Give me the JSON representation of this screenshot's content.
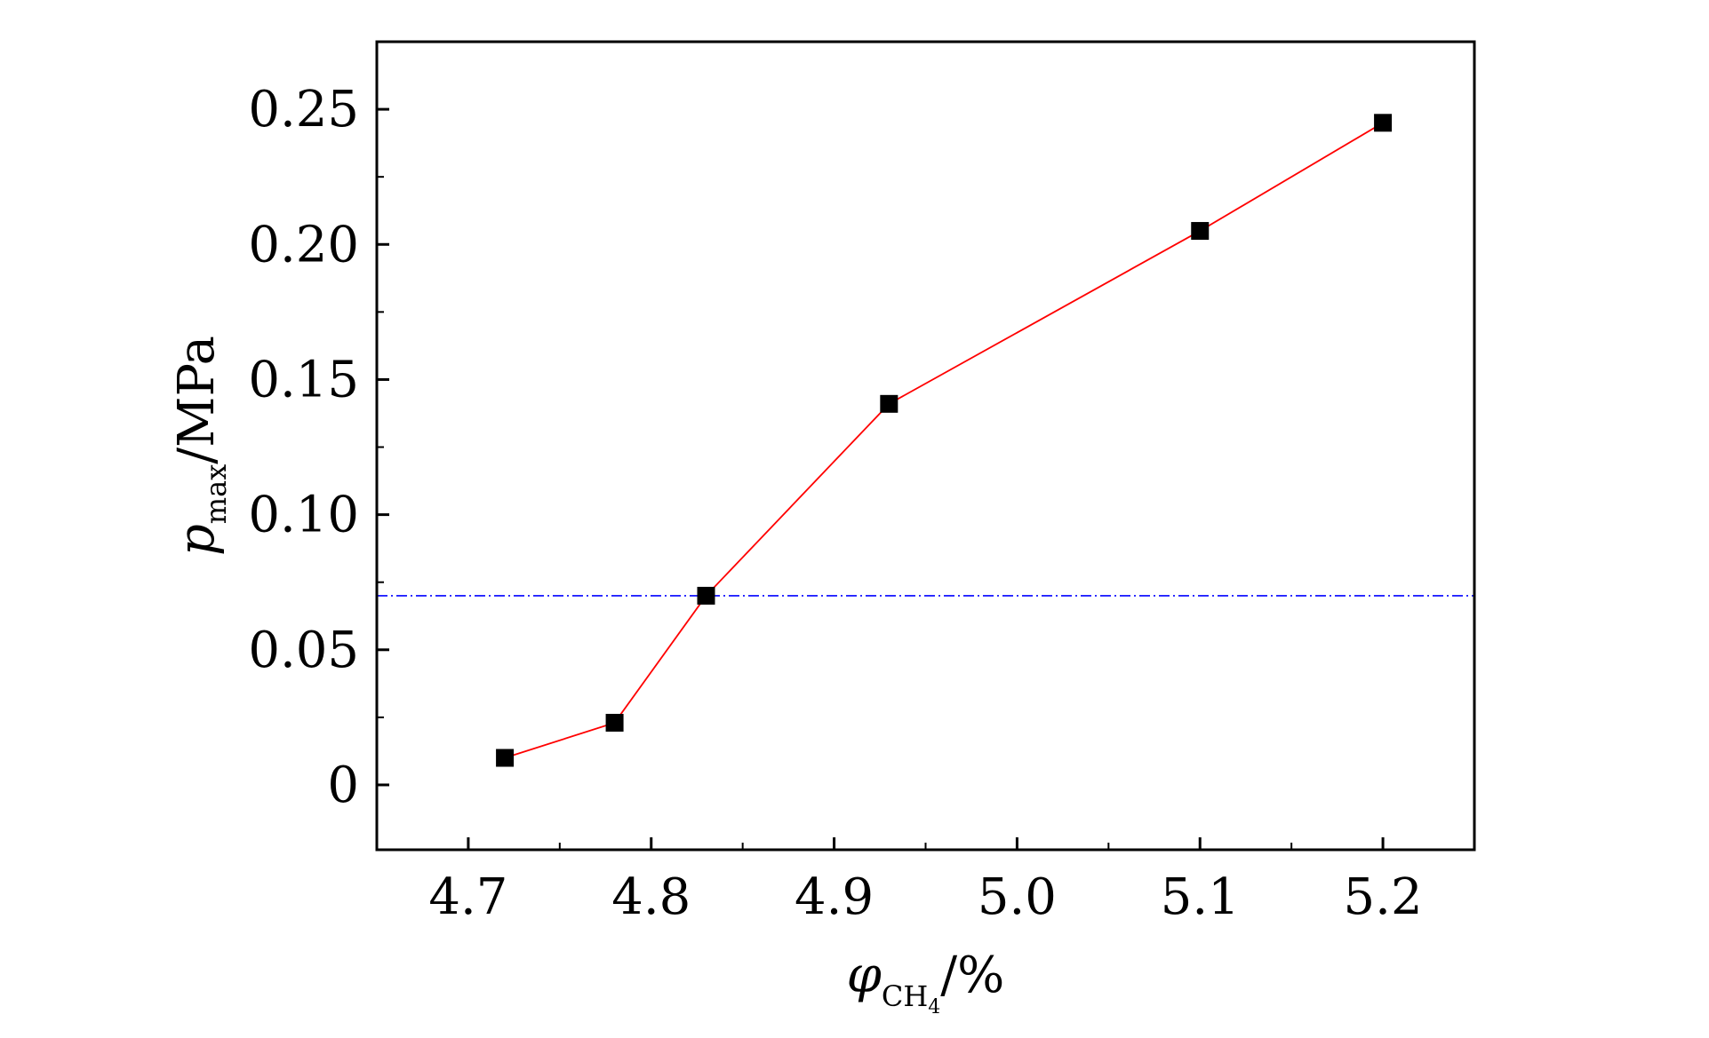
{
  "chart_data": {
    "type": "line",
    "title": "",
    "xlabel": {
      "symbol": "φ",
      "subscript": "CH",
      "subscript_index": "4",
      "unit": "/%"
    },
    "ylabel": {
      "symbol": "p",
      "subscript": "max",
      "unit": "/MPa"
    },
    "xlim": [
      4.65,
      5.25
    ],
    "ylim": [
      -0.024,
      0.275
    ],
    "x_ticks": [
      4.7,
      4.8,
      4.9,
      5.0,
      5.1,
      5.2
    ],
    "x_tick_labels": [
      "4.7",
      "4.8",
      "4.9",
      "5.0",
      "5.1",
      "5.2"
    ],
    "y_ticks": [
      0,
      0.05,
      0.1,
      0.15,
      0.2,
      0.25
    ],
    "y_tick_labels": [
      "0",
      "0.05",
      "0.10",
      "0.15",
      "0.20",
      "0.25"
    ],
    "grid": false,
    "series": [
      {
        "x": [
          4.72,
          4.78,
          4.83,
          4.93,
          5.1,
          5.2
        ],
        "y": [
          0.01,
          0.023,
          0.07,
          0.141,
          0.205,
          0.245
        ],
        "line_color": "#ff0000",
        "marker": "square",
        "marker_color": "#000000"
      }
    ],
    "reference_lines": [
      {
        "orientation": "horizontal",
        "y": 0.07,
        "style": "dash-dot",
        "color": "#0000ff"
      }
    ]
  }
}
